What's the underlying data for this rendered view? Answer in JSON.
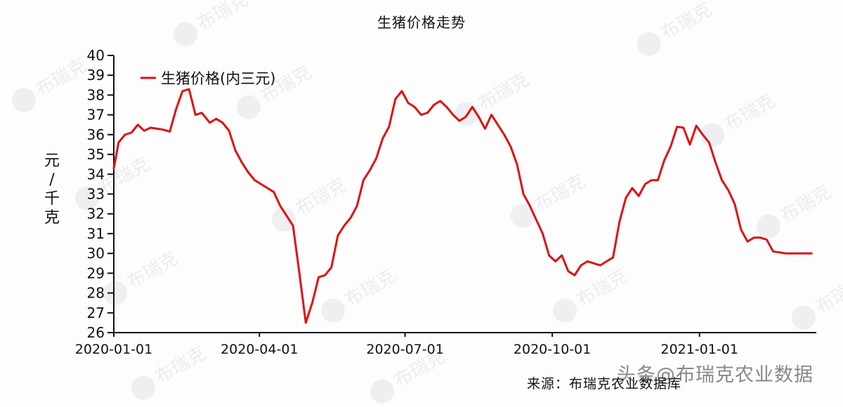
{
  "title": "生猪价格走势",
  "ylabel": [
    "元",
    "/",
    "千",
    "克"
  ],
  "legend": {
    "label": "生猪价格(内三元)",
    "color": "#e01010"
  },
  "source": "来源：布瑞克农业数据库",
  "overlay_watermark": "头条@布瑞克农业数据",
  "watermark_text": "布瑞克",
  "colors": {
    "line": "#e01010",
    "axis": "#111111",
    "background": "#fdfdfe"
  },
  "chart_data": {
    "type": "line",
    "title": "生猪价格走势",
    "xlabel": "",
    "ylabel": "元/千克",
    "ylim": [
      26,
      40
    ],
    "yticks": [
      26,
      27,
      28,
      29,
      30,
      31,
      32,
      33,
      34,
      35,
      36,
      37,
      38,
      39,
      40
    ],
    "xticks": [
      "2020-01-01",
      "2020-04-01",
      "2020-07-01",
      "2020-10-01",
      "2021-01-01"
    ],
    "grid": false,
    "legend_position": "top-left",
    "series": [
      {
        "name": "生猪价格(内三元)",
        "x": [
          "2020-01-01",
          "2020-01-04",
          "2020-01-08",
          "2020-01-12",
          "2020-01-16",
          "2020-01-20",
          "2020-01-24",
          "2020-01-28",
          "2020-02-01",
          "2020-02-05",
          "2020-02-09",
          "2020-02-13",
          "2020-02-17",
          "2020-02-21",
          "2020-02-25",
          "2020-03-01",
          "2020-03-05",
          "2020-03-09",
          "2020-03-13",
          "2020-03-17",
          "2020-03-21",
          "2020-03-25",
          "2020-03-29",
          "2020-04-02",
          "2020-04-06",
          "2020-04-10",
          "2020-04-14",
          "2020-04-18",
          "2020-04-22",
          "2020-04-26",
          "2020-04-30",
          "2020-05-04",
          "2020-05-08",
          "2020-05-12",
          "2020-05-16",
          "2020-05-20",
          "2020-05-24",
          "2020-05-28",
          "2020-06-01",
          "2020-06-05",
          "2020-06-09",
          "2020-06-13",
          "2020-06-17",
          "2020-06-21",
          "2020-06-25",
          "2020-06-29",
          "2020-07-03",
          "2020-07-07",
          "2020-07-11",
          "2020-07-15",
          "2020-07-19",
          "2020-07-23",
          "2020-07-27",
          "2020-07-31",
          "2020-08-04",
          "2020-08-08",
          "2020-08-12",
          "2020-08-16",
          "2020-08-20",
          "2020-08-24",
          "2020-08-28",
          "2020-09-01",
          "2020-09-05",
          "2020-09-09",
          "2020-09-13",
          "2020-09-17",
          "2020-09-21",
          "2020-09-25",
          "2020-09-29",
          "2020-10-03",
          "2020-10-07",
          "2020-10-11",
          "2020-10-15",
          "2020-10-19",
          "2020-10-23",
          "2020-10-27",
          "2020-10-31",
          "2020-11-04",
          "2020-11-08",
          "2020-11-12",
          "2020-11-16",
          "2020-11-20",
          "2020-11-24",
          "2020-11-28",
          "2020-12-02",
          "2020-12-06",
          "2020-12-10",
          "2020-12-14",
          "2020-12-18",
          "2020-12-22",
          "2020-12-26",
          "2020-12-30",
          "2021-01-03",
          "2021-01-07",
          "2021-01-11",
          "2021-01-15",
          "2021-01-19",
          "2021-01-23",
          "2021-01-27",
          "2021-01-31",
          "2021-02-04",
          "2021-02-08",
          "2021-02-12",
          "2021-02-16",
          "2021-02-20",
          "2021-02-24",
          "2021-02-28",
          "2021-03-04",
          "2021-03-08",
          "2021-03-12"
        ],
        "values": [
          34.3,
          35.6,
          36.0,
          36.1,
          36.5,
          36.2,
          36.35,
          36.3,
          36.25,
          36.15,
          37.3,
          38.2,
          38.3,
          37.0,
          37.1,
          36.6,
          36.8,
          36.6,
          36.2,
          35.2,
          34.6,
          34.1,
          33.7,
          33.5,
          33.3,
          33.1,
          32.4,
          31.9,
          31.4,
          29.0,
          26.5,
          27.5,
          28.8,
          28.9,
          29.3,
          30.9,
          31.4,
          31.8,
          32.4,
          33.7,
          34.2,
          34.8,
          35.8,
          36.4,
          37.8,
          38.2,
          37.6,
          37.4,
          37.0,
          37.1,
          37.5,
          37.7,
          37.4,
          37.0,
          36.7,
          36.9,
          37.4,
          36.9,
          36.3,
          37.0,
          36.5,
          36.0,
          35.4,
          34.5,
          33.0,
          32.4,
          31.7,
          31.0,
          29.9,
          29.6,
          29.9,
          29.1,
          28.9,
          29.4,
          29.6,
          29.5,
          29.4,
          29.6,
          29.8,
          31.6,
          32.8,
          33.3,
          32.9,
          33.5,
          33.7,
          33.7,
          34.7,
          35.4,
          36.4,
          36.35,
          35.5,
          36.45,
          36.0,
          35.6,
          34.6,
          33.7,
          33.2,
          32.5,
          31.2,
          30.6,
          30.8,
          30.8,
          30.7,
          30.1,
          30.05,
          30.0,
          30.0,
          30.0,
          30.0,
          30.0
        ]
      }
    ]
  }
}
